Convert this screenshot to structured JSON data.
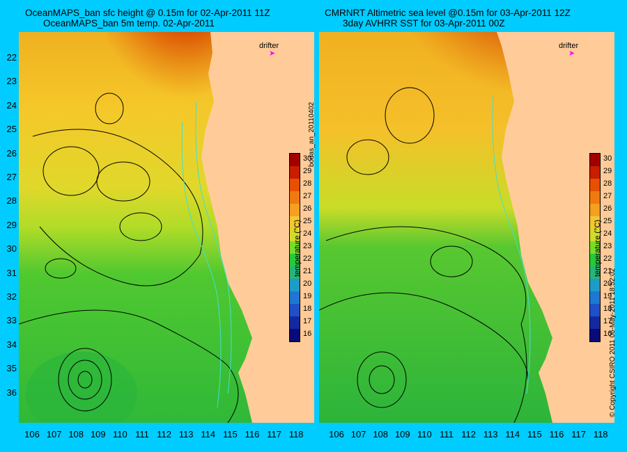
{
  "titles": {
    "left_line1": "OceanMAPS_ban sfc height @ 0.15m for 02-Apr-2011 11Z",
    "left_line2": "OceanMAPS_ban 5m temp. 02-Apr-2011",
    "right_line1": "CMRNRT Altimetric sea level  @0.15m  for 03-Apr-2011 12Z",
    "right_line2": "3day AVHRR SST for 03-Apr-2011 00Z"
  },
  "y_ticks": [
    "22",
    "23",
    "24",
    "25",
    "26",
    "27",
    "28",
    "29",
    "30",
    "31",
    "32",
    "33",
    "34",
    "35",
    "36"
  ],
  "x_ticks": [
    "106",
    "107",
    "108",
    "109",
    "110",
    "111",
    "112",
    "113",
    "114",
    "115",
    "116",
    "117",
    "118"
  ],
  "colorbar": {
    "ticks": [
      "30",
      "29",
      "28",
      "27",
      "26",
      "25",
      "24",
      "23",
      "22",
      "21",
      "20",
      "19",
      "18",
      "17",
      "16"
    ],
    "label": "temperature (°C)",
    "colors": [
      "#a00000",
      "#c81e00",
      "#e65000",
      "#f07a10",
      "#f5a020",
      "#f2c832",
      "#d2dc28",
      "#78dc28",
      "#28c83c",
      "#28b478",
      "#1e9cc8",
      "#1e78d2",
      "#1e50c8",
      "#1428a0",
      "#0a0a78"
    ]
  },
  "drifter_label": "drifter",
  "side_label": "bodas_an_20110402",
  "copyright": "© Copyright CSIRO 2011   06-May-2011 18:52:02"
}
